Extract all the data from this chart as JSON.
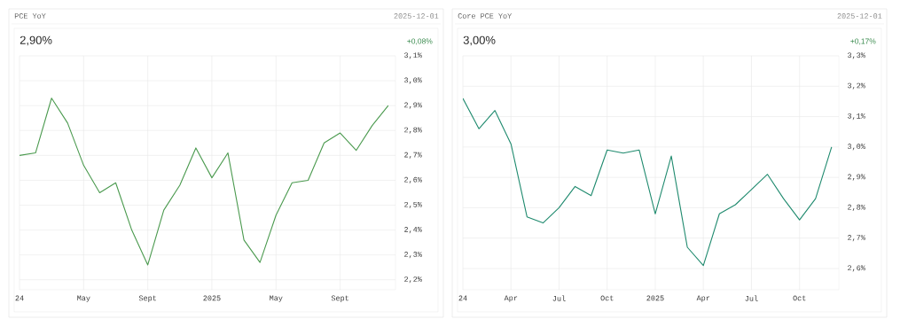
{
  "chart_data": [
    {
      "type": "line",
      "title": "PCE YoY",
      "subtitle": "2025-12-01",
      "annotations": [
        "2,90%",
        "+0,08%"
      ],
      "x": [
        "2024-01",
        "2024-02",
        "2024-03",
        "2024-04",
        "2024-05",
        "2024-06",
        "2024-07",
        "2024-08",
        "2024-09",
        "2024-10",
        "2024-11",
        "2024-12",
        "2025-01",
        "2025-02",
        "2025-03",
        "2025-04",
        "2025-05",
        "2025-06",
        "2025-07",
        "2025-08",
        "2025-09",
        "2025-10",
        "2025-11",
        "2025-12"
      ],
      "series": [
        {
          "color": "#4b9a4f",
          "values": [
            2.7,
            2.71,
            2.93,
            2.83,
            2.66,
            2.55,
            2.59,
            2.4,
            2.26,
            2.48,
            2.58,
            2.73,
            2.61,
            2.71,
            2.36,
            2.27,
            2.46,
            2.59,
            2.6,
            2.75,
            2.79,
            2.72,
            2.82,
            2.9
          ]
        }
      ],
      "xlim": [
        "2024-01",
        "2025-12-15"
      ],
      "ylim": [
        2.16,
        3.1
      ],
      "xticks": [
        {
          "value": "2024-01",
          "label": "24"
        },
        {
          "value": "2024-05",
          "label": "May"
        },
        {
          "value": "2024-09",
          "label": "Sept"
        },
        {
          "value": "2025-01",
          "label": "2025"
        },
        {
          "value": "2025-05",
          "label": "May"
        },
        {
          "value": "2025-09",
          "label": "Sept"
        }
      ],
      "yticks": [
        {
          "value": 2.2,
          "label": "2,2%"
        },
        {
          "value": 2.3,
          "label": "2,3%"
        },
        {
          "value": 2.4,
          "label": "2,4%"
        },
        {
          "value": 2.5,
          "label": "2,5%"
        },
        {
          "value": 2.6,
          "label": "2,6%"
        },
        {
          "value": 2.7,
          "label": "2,7%"
        },
        {
          "value": 2.8,
          "label": "2,8%"
        },
        {
          "value": 2.9,
          "label": "2,9%"
        },
        {
          "value": 3.0,
          "label": "3,0%"
        },
        {
          "value": 3.1,
          "label": "3,1%"
        }
      ],
      "grid": true
    },
    {
      "type": "line",
      "title": "Core PCE YoY",
      "subtitle": "2025-12-01",
      "annotations": [
        "3,00%",
        "+0,17%"
      ],
      "x": [
        "2024-01",
        "2024-02",
        "2024-03",
        "2024-04",
        "2024-05",
        "2024-06",
        "2024-07",
        "2024-08",
        "2024-09",
        "2024-10",
        "2024-11",
        "2024-12",
        "2025-01",
        "2025-02",
        "2025-03",
        "2025-04",
        "2025-05",
        "2025-06",
        "2025-07",
        "2025-08",
        "2025-09",
        "2025-10",
        "2025-11",
        "2025-12"
      ],
      "series": [
        {
          "color": "#1f8a6e",
          "values": [
            3.16,
            3.06,
            3.12,
            3.01,
            2.77,
            2.75,
            2.8,
            2.87,
            2.84,
            2.99,
            2.98,
            2.99,
            2.78,
            2.97,
            2.67,
            2.61,
            2.78,
            2.81,
            2.86,
            2.91,
            2.83,
            2.76,
            2.83,
            3.0
          ]
        }
      ],
      "xlim": [
        "2024-01",
        "2025-12-15"
      ],
      "ylim": [
        2.53,
        3.3
      ],
      "xticks": [
        {
          "value": "2024-01",
          "label": "24"
        },
        {
          "value": "2024-04",
          "label": "Apr"
        },
        {
          "value": "2024-07",
          "label": "Jul"
        },
        {
          "value": "2024-10",
          "label": "Oct"
        },
        {
          "value": "2025-01",
          "label": "2025"
        },
        {
          "value": "2025-04",
          "label": "Apr"
        },
        {
          "value": "2025-07",
          "label": "Jul"
        },
        {
          "value": "2025-10",
          "label": "Oct"
        }
      ],
      "yticks": [
        {
          "value": 2.6,
          "label": "2,6%"
        },
        {
          "value": 2.7,
          "label": "2,7%"
        },
        {
          "value": 2.8,
          "label": "2,8%"
        },
        {
          "value": 2.9,
          "label": "2,9%"
        },
        {
          "value": 3.0,
          "label": "3,0%"
        },
        {
          "value": 3.1,
          "label": "3,1%"
        },
        {
          "value": 3.2,
          "label": "3,2%"
        },
        {
          "value": 3.3,
          "label": "3,3%"
        }
      ],
      "grid": true
    }
  ]
}
